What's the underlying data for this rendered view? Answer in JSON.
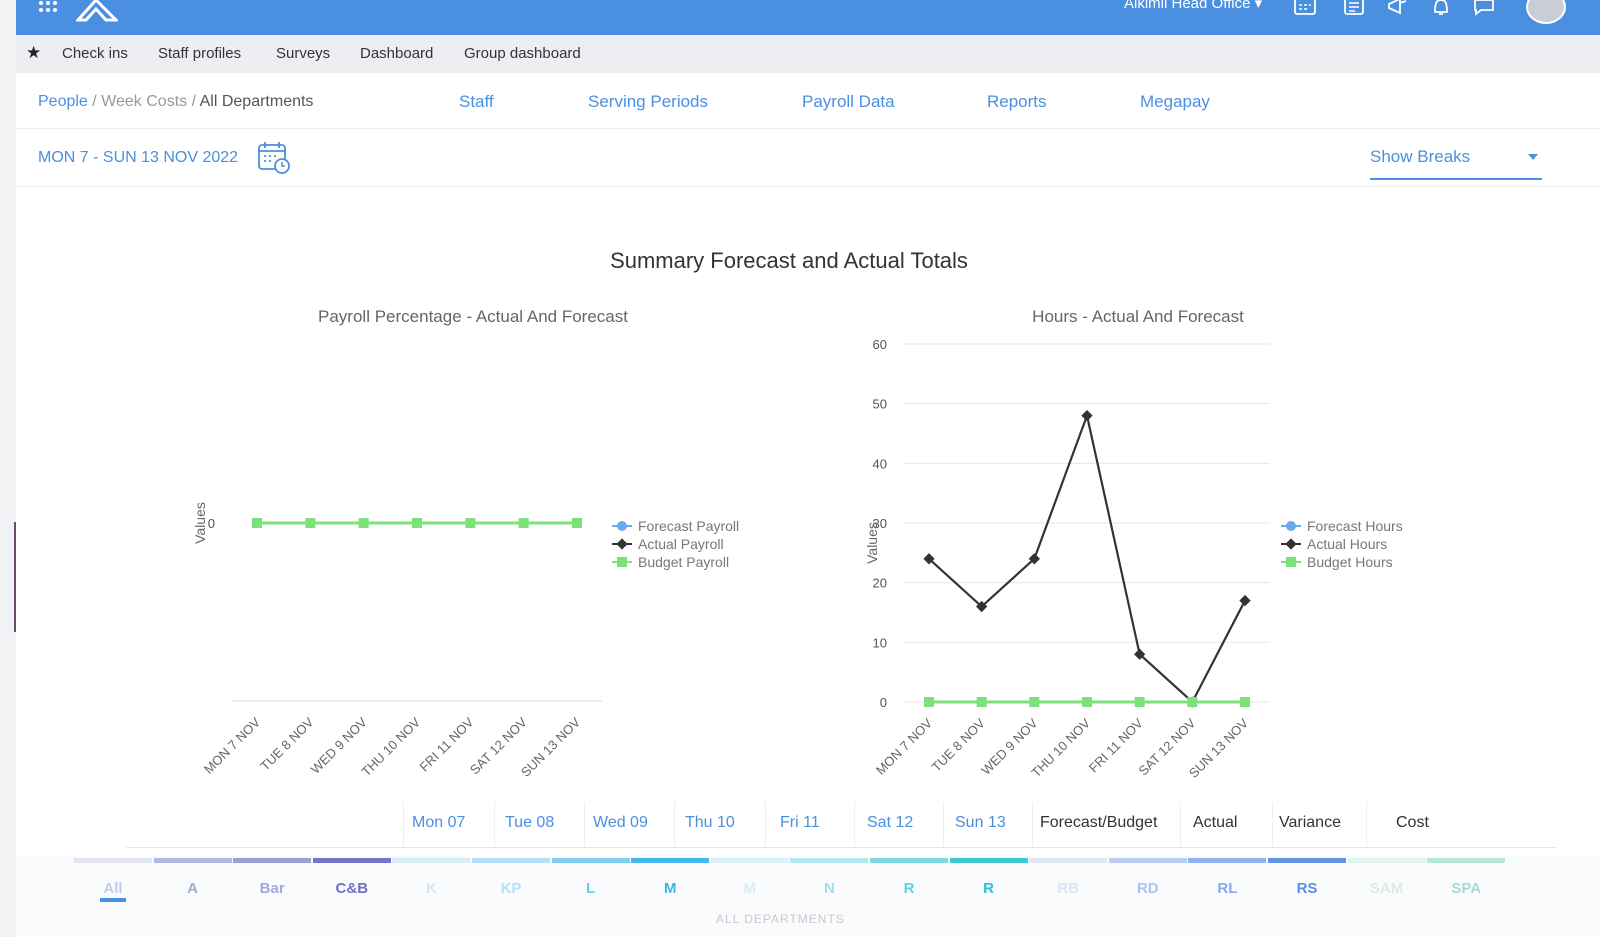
{
  "topbar": {
    "org_name": "Aikimii Head Office ▾"
  },
  "menu": {
    "items": [
      "Check ins",
      "Staff profiles",
      "Surveys",
      "Dashboard",
      "Group dashboard"
    ]
  },
  "nav": {
    "breadcrumb": {
      "people": "People",
      "week_costs": "Week Costs",
      "all_departments": "All Departments",
      "separator": "/"
    },
    "tabs": [
      "Staff",
      "Serving Periods",
      "Payroll Data",
      "Reports",
      "Megapay"
    ]
  },
  "date": {
    "range": "MON 7 - SUN 13 NOV 2022"
  },
  "breaks": {
    "label": "Show Breaks"
  },
  "summary": {
    "title": "Summary Forecast and Actual Totals"
  },
  "chart_data": [
    {
      "type": "line",
      "title": "Payroll Percentage - Actual And Forecast",
      "ylabel": "Values",
      "categories": [
        "MON 7 NOV",
        "TUE 8 NOV",
        "WED 9 NOV",
        "THU 10 NOV",
        "FRI 11 NOV",
        "SAT 12 NOV",
        "SUN 13 NOV"
      ],
      "yticks": [
        0
      ],
      "series": [
        {
          "name": "Forecast Payroll",
          "color": "#6aa9f0",
          "values": [
            null,
            null,
            null,
            null,
            null,
            null,
            null
          ]
        },
        {
          "name": "Actual Payroll",
          "color": "#333333",
          "values": [
            null,
            null,
            null,
            null,
            null,
            null,
            null
          ]
        },
        {
          "name": "Budget Payroll",
          "color": "#7ee07a",
          "values": [
            0,
            0,
            0,
            0,
            0,
            0,
            0
          ]
        }
      ],
      "legend": "right"
    },
    {
      "type": "line",
      "title": "Hours - Actual And Forecast",
      "ylabel": "Values",
      "categories": [
        "MON 7 NOV",
        "TUE 8 NOV",
        "WED 9 NOV",
        "THU 10 NOV",
        "FRI 11 NOV",
        "SAT 12 NOV",
        "SUN 13 NOV"
      ],
      "ylim": [
        0,
        60
      ],
      "yticks": [
        0,
        10,
        20,
        30,
        40,
        50,
        60
      ],
      "series": [
        {
          "name": "Forecast Hours",
          "color": "#6aa9f0",
          "values": [
            null,
            null,
            null,
            null,
            null,
            null,
            null
          ]
        },
        {
          "name": "Actual Hours",
          "color": "#333333",
          "values": [
            24,
            16,
            24,
            48,
            8,
            0,
            17
          ]
        },
        {
          "name": "Budget Hours",
          "color": "#7ee07a",
          "values": [
            0,
            0,
            0,
            0,
            0,
            0,
            0
          ]
        }
      ],
      "legend": "right"
    }
  ],
  "table_header": {
    "days": [
      "Mon 07",
      "Tue 08",
      "Wed 09",
      "Thu 10",
      "Fri 11",
      "Sat 12",
      "Sun 13"
    ],
    "columns": [
      "Forecast/Budget",
      "Actual",
      "Variance",
      "Cost"
    ]
  },
  "departments": {
    "items": [
      {
        "label": "All",
        "color": "#e3e6f2",
        "text": "#c3c9ea",
        "active": true
      },
      {
        "label": "A",
        "color": "#b4b9e0",
        "text": "#a3a8d8"
      },
      {
        "label": "Bar",
        "color": "#9a9fd8",
        "text": "#a3a8d8"
      },
      {
        "label": "C&B",
        "color": "#7378c8",
        "text": "#6d72c6"
      },
      {
        "label": "K",
        "color": "#d8edf9",
        "text": "#d3e6f6"
      },
      {
        "label": "KP",
        "color": "#b3e0f6",
        "text": "#b5dff4"
      },
      {
        "label": "L",
        "color": "#7fd0f3",
        "text": "#6fc9f0"
      },
      {
        "label": "M",
        "color": "#44b9ee",
        "text": "#3db3ea"
      },
      {
        "label": "M",
        "color": "#dcf1f7",
        "text": "#d8eef4"
      },
      {
        "label": "N",
        "color": "#b4e7ef",
        "text": "#9fdde7"
      },
      {
        "label": "R",
        "color": "#7fd9e2",
        "text": "#63cfd9"
      },
      {
        "label": "R",
        "color": "#3ec8d3",
        "text": "#2fc0cc"
      },
      {
        "label": "RB",
        "color": "#dfe7f8",
        "text": "#dbe3f5"
      },
      {
        "label": "RD",
        "color": "#bccdf4",
        "text": "#aec3f0"
      },
      {
        "label": "RL",
        "color": "#92b2f0",
        "text": "#86a9ee"
      },
      {
        "label": "RS",
        "color": "#6493ea",
        "text": "#5a8ce8"
      },
      {
        "label": "SAM",
        "color": "#e0f3ef",
        "text": "#d8ede8"
      },
      {
        "label": "SPA",
        "color": "#b8e6dc",
        "text": "#a3ddd0"
      }
    ],
    "title": "ALL DEPARTMENTS"
  }
}
